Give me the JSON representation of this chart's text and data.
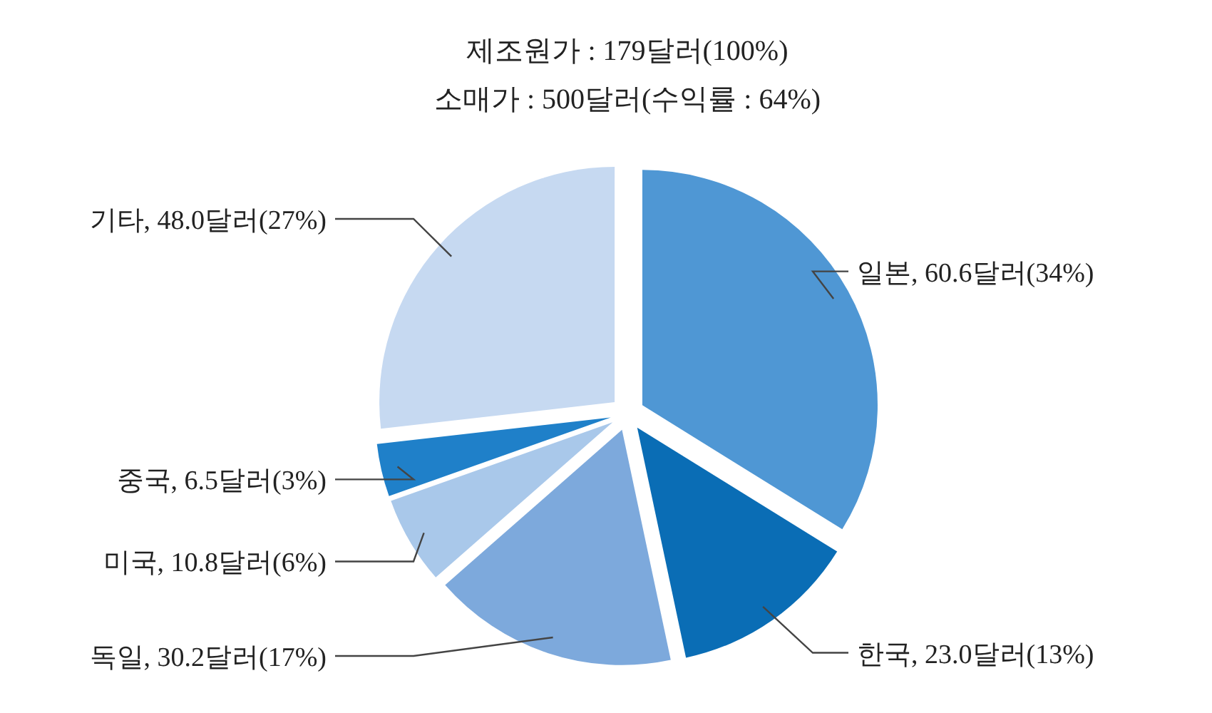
{
  "chart_data": {
    "type": "pie",
    "title": "제조원가 : 179달러(100%)",
    "subtitle": "소매가 : 500달러(수익률 : 64%)",
    "categories": [
      "일본, 60.6달러(34%)",
      "한국, 23.0달러(13%)",
      "독일, 30.2달러(17%)",
      "미국, 10.8달러(6%)",
      "중국, 6.5달러(3%)",
      "기타, 48.0달러(27%)"
    ],
    "values": [
      60.6,
      23.0,
      30.2,
      10.8,
      6.5,
      48.0
    ],
    "colors": [
      "#4f97d4",
      "#0a6db5",
      "#7da9dc",
      "#a9c8ea",
      "#1f80c9",
      "#c6d9f1"
    ]
  }
}
